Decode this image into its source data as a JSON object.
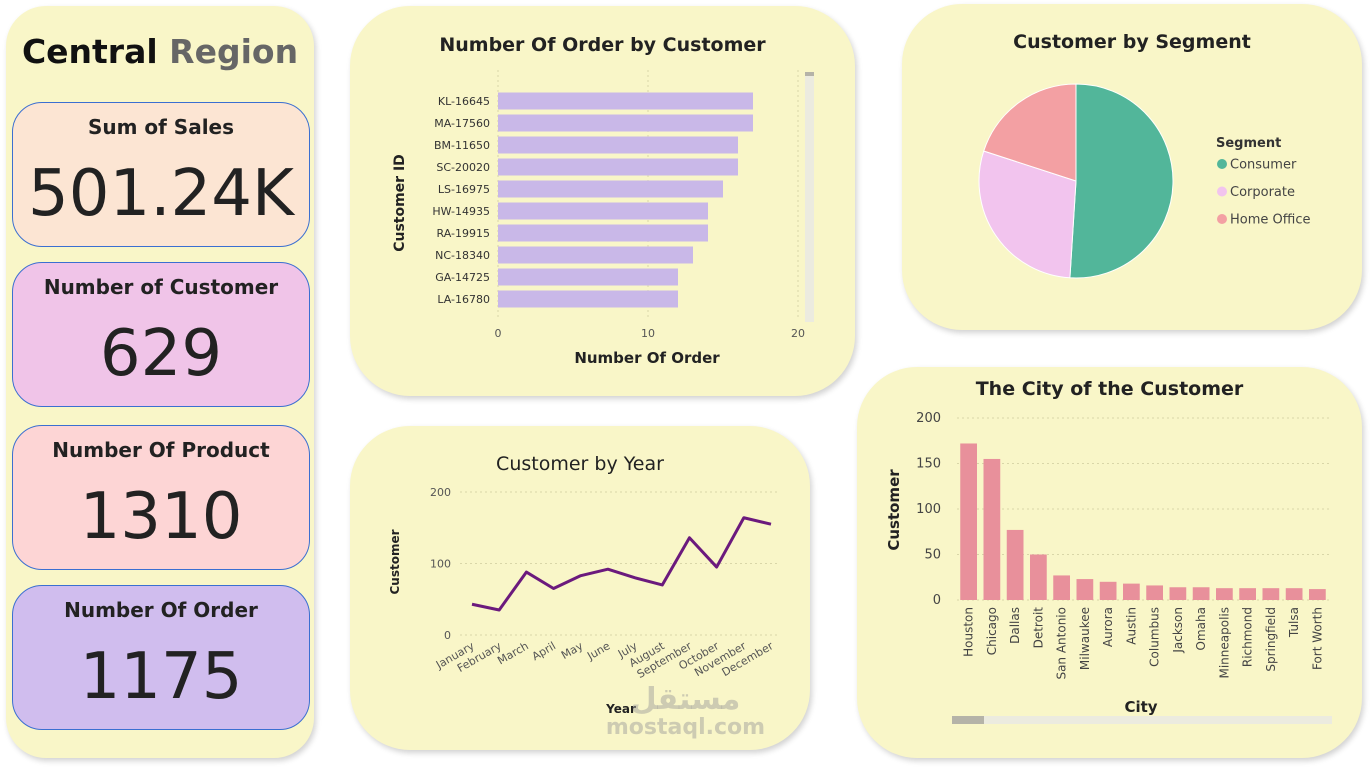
{
  "region": {
    "word1": "Central",
    "word2": "Region"
  },
  "kpis": {
    "sales": {
      "label": "Sum of Sales",
      "value": "501.24K"
    },
    "customers": {
      "label": "Number of Customer",
      "value": "629"
    },
    "products": {
      "label": "Number Of Product",
      "value": "1310"
    },
    "orders": {
      "label": "Number Of Order",
      "value": "1175"
    }
  },
  "colors": {
    "panel_bg": "#f9f6c8",
    "bar_purple": "#c9b8e8",
    "line_purple": "#6b1a7d",
    "city_bar": "#e8909b",
    "consumer": "#52b69a",
    "corporate": "#f2c4ee",
    "home_office": "#f3a0a3"
  },
  "watermark": {
    "arabic": "مستقل",
    "domain": "mostaql.com"
  },
  "chart_data": [
    {
      "id": "orders_by_customer",
      "type": "bar",
      "orientation": "horizontal",
      "title": "Number Of Order by Customer",
      "xlabel": "Number Of Order",
      "ylabel": "Customer ID",
      "categories": [
        "KL-16645",
        "MA-17560",
        "BM-11650",
        "SC-20020",
        "LS-16975",
        "HW-14935",
        "RA-19915",
        "NC-18340",
        "GA-14725",
        "LA-16780"
      ],
      "values": [
        17,
        17,
        16,
        16,
        15,
        14,
        14,
        13,
        12,
        12
      ],
      "xlim": [
        0,
        20
      ],
      "xticks": [
        "0",
        "10",
        "20"
      ]
    },
    {
      "id": "customer_by_segment",
      "type": "pie",
      "title": "Customer by Segment",
      "legend_title": "Segment",
      "legend_position": "right",
      "labels": [
        "Consumer",
        "Corporate",
        "Home Office"
      ],
      "values": [
        51,
        29,
        20
      ]
    },
    {
      "id": "customer_by_year",
      "type": "line",
      "title": "Customer by Year",
      "xlabel": "Year",
      "ylabel": "Customer",
      "categories": [
        "January",
        "February",
        "March",
        "April",
        "May",
        "June",
        "July",
        "August",
        "September",
        "October",
        "November",
        "December"
      ],
      "values": [
        43,
        35,
        88,
        65,
        83,
        92,
        80,
        70,
        136,
        95,
        164,
        155
      ],
      "ylim": [
        0,
        200
      ],
      "yticks": [
        "0",
        "100",
        "200"
      ],
      "grid": true
    },
    {
      "id": "city_of_customer",
      "type": "bar",
      "orientation": "vertical",
      "title": "The City of the Customer",
      "xlabel": "City",
      "ylabel": "Customer",
      "categories": [
        "Houston",
        "Chicago",
        "Dallas",
        "Detroit",
        "San Antonio",
        "Milwaukee",
        "Aurora",
        "Austin",
        "Columbus",
        "Jackson",
        "Omaha",
        "Minneapolis",
        "Richmond",
        "Springfield",
        "Tulsa",
        "Fort Worth"
      ],
      "values": [
        172,
        155,
        77,
        50,
        27,
        23,
        20,
        18,
        16,
        14,
        14,
        13,
        13,
        13,
        13,
        12
      ],
      "ylim": [
        0,
        200
      ],
      "yticks": [
        "0",
        "50",
        "100",
        "150",
        "200"
      ],
      "grid": true
    }
  ]
}
